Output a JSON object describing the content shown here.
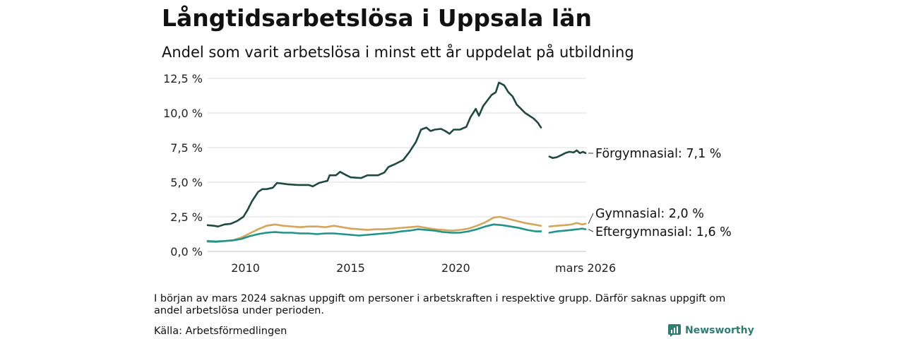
{
  "header": {
    "title": "Långtidsarbetslösa i Uppsala län",
    "subtitle": "Andel som varit arbetslösa i minst ett år uppdelat på utbildning"
  },
  "chart_data": {
    "type": "line",
    "title": "Långtidsarbetslösa i Uppsala län",
    "subtitle": "Andel som varit arbetslösa i minst ett år uppdelat på utbildning",
    "xlabel": "",
    "ylabel": "",
    "x_range": [
      2008.2,
      2026.2
    ],
    "ylim": [
      0,
      12.5
    ],
    "y_ticks": [
      0,
      2.5,
      5.0,
      7.5,
      10.0,
      12.5
    ],
    "y_tick_labels": [
      "0,0 %",
      "2,5 %",
      "5,0 %",
      "7,5 %",
      "10,0 %",
      "12,5 %"
    ],
    "x_ticks": [
      2010,
      2015,
      2020,
      2026.17
    ],
    "x_tick_labels": [
      "2010",
      "2015",
      "2020",
      "mars 2026"
    ],
    "grid": true,
    "gap": [
      2024.17,
      2024.45
    ],
    "series": [
      {
        "name": "Förgymnasial",
        "end_label": "Förgymnasial: 7,1 %",
        "color": "#1d4a3a",
        "points": [
          [
            2008.2,
            1.9
          ],
          [
            2008.5,
            1.85
          ],
          [
            2008.7,
            1.8
          ],
          [
            2009.0,
            1.95
          ],
          [
            2009.3,
            2.0
          ],
          [
            2009.6,
            2.2
          ],
          [
            2009.9,
            2.5
          ],
          [
            2010.1,
            3.0
          ],
          [
            2010.3,
            3.6
          ],
          [
            2010.6,
            4.3
          ],
          [
            2010.8,
            4.5
          ],
          [
            2011.0,
            4.5
          ],
          [
            2011.3,
            4.6
          ],
          [
            2011.5,
            4.95
          ],
          [
            2012.0,
            4.85
          ],
          [
            2012.5,
            4.8
          ],
          [
            2013.0,
            4.8
          ],
          [
            2013.2,
            4.7
          ],
          [
            2013.5,
            4.95
          ],
          [
            2013.9,
            5.1
          ],
          [
            2014.0,
            5.5
          ],
          [
            2014.3,
            5.5
          ],
          [
            2014.5,
            5.75
          ],
          [
            2014.8,
            5.5
          ],
          [
            2015.0,
            5.35
          ],
          [
            2015.5,
            5.3
          ],
          [
            2015.8,
            5.5
          ],
          [
            2016.0,
            5.5
          ],
          [
            2016.3,
            5.5
          ],
          [
            2016.6,
            5.7
          ],
          [
            2016.8,
            6.1
          ],
          [
            2017.1,
            6.3
          ],
          [
            2017.5,
            6.6
          ],
          [
            2017.8,
            7.2
          ],
          [
            2018.1,
            7.9
          ],
          [
            2018.35,
            8.8
          ],
          [
            2018.6,
            8.95
          ],
          [
            2018.8,
            8.7
          ],
          [
            2019.0,
            8.8
          ],
          [
            2019.3,
            8.85
          ],
          [
            2019.5,
            8.7
          ],
          [
            2019.7,
            8.5
          ],
          [
            2019.9,
            8.8
          ],
          [
            2020.2,
            8.8
          ],
          [
            2020.5,
            9.0
          ],
          [
            2020.7,
            9.7
          ],
          [
            2020.95,
            10.3
          ],
          [
            2021.1,
            9.8
          ],
          [
            2021.3,
            10.5
          ],
          [
            2021.5,
            10.9
          ],
          [
            2021.7,
            11.3
          ],
          [
            2021.9,
            11.5
          ],
          [
            2022.05,
            12.2
          ],
          [
            2022.3,
            12.0
          ],
          [
            2022.5,
            11.5
          ],
          [
            2022.7,
            11.2
          ],
          [
            2022.9,
            10.6
          ],
          [
            2023.1,
            10.3
          ],
          [
            2023.3,
            10.0
          ],
          [
            2023.5,
            9.8
          ],
          [
            2023.7,
            9.6
          ],
          [
            2023.9,
            9.3
          ],
          [
            2024.05,
            8.95
          ],
          null,
          [
            2024.45,
            6.85
          ],
          [
            2024.6,
            6.75
          ],
          [
            2024.8,
            6.8
          ],
          [
            2025.0,
            6.95
          ],
          [
            2025.2,
            7.1
          ],
          [
            2025.4,
            7.2
          ],
          [
            2025.6,
            7.15
          ],
          [
            2025.75,
            7.3
          ],
          [
            2025.9,
            7.1
          ],
          [
            2026.05,
            7.2
          ],
          [
            2026.17,
            7.1
          ]
        ]
      },
      {
        "name": "Gymnasial",
        "end_label": "Gymnasial: 2,0 %",
        "color": "#d4a55a",
        "points": [
          [
            2008.2,
            0.7
          ],
          [
            2008.6,
            0.68
          ],
          [
            2009.0,
            0.75
          ],
          [
            2009.4,
            0.8
          ],
          [
            2009.8,
            1.0
          ],
          [
            2010.2,
            1.3
          ],
          [
            2010.6,
            1.6
          ],
          [
            2011.0,
            1.85
          ],
          [
            2011.4,
            1.95
          ],
          [
            2011.8,
            1.85
          ],
          [
            2012.2,
            1.8
          ],
          [
            2012.6,
            1.75
          ],
          [
            2013.0,
            1.8
          ],
          [
            2013.4,
            1.8
          ],
          [
            2013.8,
            1.75
          ],
          [
            2014.2,
            1.85
          ],
          [
            2014.6,
            1.75
          ],
          [
            2015.0,
            1.65
          ],
          [
            2015.4,
            1.6
          ],
          [
            2015.8,
            1.55
          ],
          [
            2016.2,
            1.6
          ],
          [
            2016.6,
            1.6
          ],
          [
            2017.0,
            1.65
          ],
          [
            2017.4,
            1.7
          ],
          [
            2017.8,
            1.75
          ],
          [
            2018.2,
            1.8
          ],
          [
            2018.6,
            1.7
          ],
          [
            2019.0,
            1.6
          ],
          [
            2019.4,
            1.55
          ],
          [
            2019.8,
            1.5
          ],
          [
            2020.2,
            1.55
          ],
          [
            2020.6,
            1.65
          ],
          [
            2021.0,
            1.85
          ],
          [
            2021.4,
            2.1
          ],
          [
            2021.8,
            2.45
          ],
          [
            2022.1,
            2.5
          ],
          [
            2022.5,
            2.35
          ],
          [
            2022.9,
            2.2
          ],
          [
            2023.3,
            2.05
          ],
          [
            2023.7,
            1.95
          ],
          [
            2024.05,
            1.85
          ],
          null,
          [
            2024.45,
            1.8
          ],
          [
            2024.8,
            1.85
          ],
          [
            2025.2,
            1.9
          ],
          [
            2025.5,
            1.95
          ],
          [
            2025.75,
            2.05
          ],
          [
            2026.0,
            1.95
          ],
          [
            2026.17,
            2.0
          ]
        ]
      },
      {
        "name": "Eftergymnasial",
        "end_label": "Eftergymnasial: 1,6 %",
        "color": "#1f9488",
        "points": [
          [
            2008.2,
            0.75
          ],
          [
            2008.6,
            0.72
          ],
          [
            2009.0,
            0.75
          ],
          [
            2009.4,
            0.8
          ],
          [
            2009.8,
            0.9
          ],
          [
            2010.2,
            1.1
          ],
          [
            2010.6,
            1.25
          ],
          [
            2011.0,
            1.35
          ],
          [
            2011.4,
            1.4
          ],
          [
            2011.8,
            1.35
          ],
          [
            2012.2,
            1.35
          ],
          [
            2012.6,
            1.3
          ],
          [
            2013.0,
            1.3
          ],
          [
            2013.4,
            1.25
          ],
          [
            2013.8,
            1.3
          ],
          [
            2014.2,
            1.3
          ],
          [
            2014.6,
            1.25
          ],
          [
            2015.0,
            1.2
          ],
          [
            2015.4,
            1.15
          ],
          [
            2015.8,
            1.2
          ],
          [
            2016.2,
            1.25
          ],
          [
            2016.6,
            1.3
          ],
          [
            2017.0,
            1.35
          ],
          [
            2017.4,
            1.45
          ],
          [
            2017.8,
            1.5
          ],
          [
            2018.2,
            1.6
          ],
          [
            2018.6,
            1.55
          ],
          [
            2019.0,
            1.5
          ],
          [
            2019.4,
            1.4
          ],
          [
            2019.8,
            1.35
          ],
          [
            2020.2,
            1.35
          ],
          [
            2020.6,
            1.45
          ],
          [
            2021.0,
            1.6
          ],
          [
            2021.4,
            1.8
          ],
          [
            2021.8,
            1.95
          ],
          [
            2022.2,
            1.9
          ],
          [
            2022.6,
            1.8
          ],
          [
            2023.0,
            1.7
          ],
          [
            2023.4,
            1.55
          ],
          [
            2023.8,
            1.45
          ],
          [
            2024.05,
            1.45
          ],
          null,
          [
            2024.45,
            1.35
          ],
          [
            2024.8,
            1.45
          ],
          [
            2025.2,
            1.5
          ],
          [
            2025.5,
            1.55
          ],
          [
            2025.8,
            1.6
          ],
          [
            2026.0,
            1.65
          ],
          [
            2026.17,
            1.6
          ]
        ]
      }
    ]
  },
  "footer": {
    "note": "I början av mars 2024 saknas uppgift om personer i arbetskraften i respektive grupp. Därför saknas uppgift om andel arbetslösa under perioden.",
    "source": "Källa: Arbetsförmedlingen",
    "brand": "Newsworthy",
    "brand_color": "#2f7d70"
  }
}
